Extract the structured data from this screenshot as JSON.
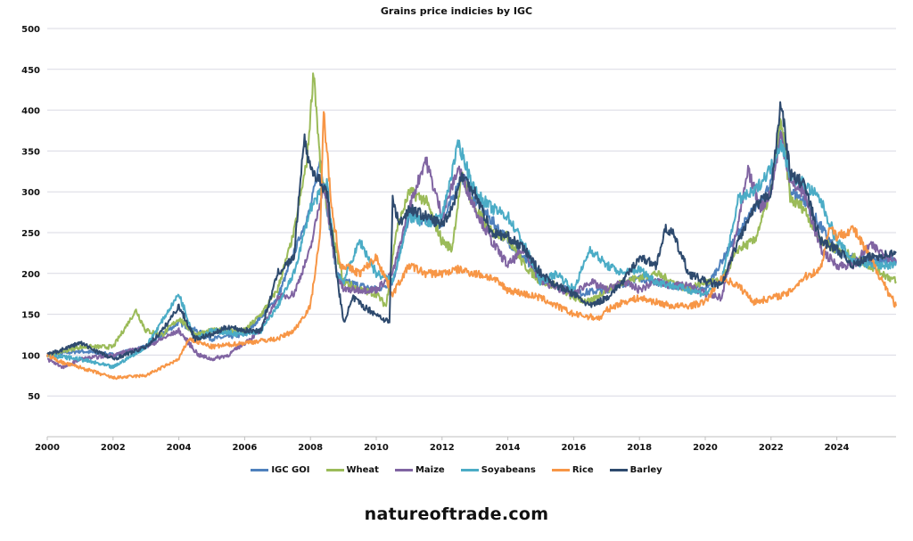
{
  "chart_data": {
    "type": "line",
    "title": "Grains price indicies by IGC",
    "xlabel": "",
    "ylabel": "",
    "xlim": [
      2000,
      2025.8
    ],
    "ylim": [
      0,
      500
    ],
    "xticks": [
      "2000",
      "2002",
      "2004",
      "2006",
      "2008",
      "2010",
      "2012",
      "2014",
      "2016",
      "2018",
      "2020",
      "2022",
      "2024"
    ],
    "yticks": [
      "50",
      "100",
      "150",
      "200",
      "250",
      "300",
      "350",
      "400",
      "450",
      "500"
    ],
    "grid": "horizontal",
    "legend_position": "bottom",
    "series": [
      {
        "name": "IGC GOI",
        "color": "#4f81bd",
        "points": [
          [
            2000,
            100
          ],
          [
            2001,
            105
          ],
          [
            2002,
            100
          ],
          [
            2003,
            110
          ],
          [
            2004,
            140
          ],
          [
            2005,
            120
          ],
          [
            2006,
            125
          ],
          [
            2007,
            170
          ],
          [
            2008,
            280
          ],
          [
            2008.3,
            340
          ],
          [
            2008.8,
            200
          ],
          [
            2009,
            190
          ],
          [
            2010,
            180
          ],
          [
            2010.5,
            190
          ],
          [
            2011,
            270
          ],
          [
            2012,
            260
          ],
          [
            2012.6,
            320
          ],
          [
            2013,
            290
          ],
          [
            2014,
            240
          ],
          [
            2015,
            195
          ],
          [
            2016,
            175
          ],
          [
            2017,
            180
          ],
          [
            2018,
            195
          ],
          [
            2019,
            185
          ],
          [
            2020,
            180
          ],
          [
            2021,
            250
          ],
          [
            2022,
            310
          ],
          [
            2022.3,
            380
          ],
          [
            2022.6,
            300
          ],
          [
            2023,
            290
          ],
          [
            2024,
            225
          ],
          [
            2025,
            215
          ],
          [
            2025.8,
            215
          ]
        ]
      },
      {
        "name": "Wheat",
        "color": "#9bbb59",
        "points": [
          [
            2000,
            100
          ],
          [
            2001,
            110
          ],
          [
            2002,
            110
          ],
          [
            2002.7,
            155
          ],
          [
            2003,
            130
          ],
          [
            2003.5,
            125
          ],
          [
            2004,
            145
          ],
          [
            2004.5,
            125
          ],
          [
            2005,
            130
          ],
          [
            2006,
            130
          ],
          [
            2006.5,
            150
          ],
          [
            2007,
            180
          ],
          [
            2007.5,
            250
          ],
          [
            2007.9,
            340
          ],
          [
            2008.1,
            450
          ],
          [
            2008.3,
            330
          ],
          [
            2008.6,
            260
          ],
          [
            2009,
            190
          ],
          [
            2009.5,
            180
          ],
          [
            2010,
            175
          ],
          [
            2010.3,
            160
          ],
          [
            2010.6,
            250
          ],
          [
            2011,
            300
          ],
          [
            2011.5,
            290
          ],
          [
            2012,
            240
          ],
          [
            2012.3,
            230
          ],
          [
            2012.6,
            320
          ],
          [
            2013,
            280
          ],
          [
            2013.5,
            250
          ],
          [
            2014,
            245
          ],
          [
            2014.5,
            210
          ],
          [
            2015,
            190
          ],
          [
            2015.5,
            185
          ],
          [
            2016,
            170
          ],
          [
            2016.5,
            165
          ],
          [
            2017,
            180
          ],
          [
            2017.5,
            190
          ],
          [
            2018,
            195
          ],
          [
            2018.5,
            200
          ],
          [
            2019,
            190
          ],
          [
            2019.5,
            180
          ],
          [
            2020,
            190
          ],
          [
            2020.5,
            190
          ],
          [
            2021,
            230
          ],
          [
            2021.5,
            240
          ],
          [
            2022,
            300
          ],
          [
            2022.3,
            390
          ],
          [
            2022.6,
            290
          ],
          [
            2023,
            280
          ],
          [
            2023.5,
            240
          ],
          [
            2024,
            230
          ],
          [
            2024.5,
            220
          ],
          [
            2025,
            210
          ],
          [
            2025.8,
            190
          ]
        ]
      },
      {
        "name": "Maize",
        "color": "#8064a2",
        "points": [
          [
            2000,
            95
          ],
          [
            2000.5,
            85
          ],
          [
            2001,
            95
          ],
          [
            2002,
            100
          ],
          [
            2003,
            110
          ],
          [
            2004,
            130
          ],
          [
            2004.6,
            100
          ],
          [
            2005,
            95
          ],
          [
            2005.5,
            100
          ],
          [
            2006,
            115
          ],
          [
            2006.5,
            130
          ],
          [
            2007,
            170
          ],
          [
            2007.5,
            175
          ],
          [
            2008,
            230
          ],
          [
            2008.4,
            310
          ],
          [
            2008.8,
            200
          ],
          [
            2009,
            180
          ],
          [
            2009.5,
            180
          ],
          [
            2010,
            180
          ],
          [
            2010.5,
            200
          ],
          [
            2011,
            280
          ],
          [
            2011.5,
            340
          ],
          [
            2012,
            270
          ],
          [
            2012.5,
            330
          ],
          [
            2013,
            280
          ],
          [
            2013.5,
            240
          ],
          [
            2014,
            210
          ],
          [
            2014.5,
            230
          ],
          [
            2015,
            190
          ],
          [
            2016,
            175
          ],
          [
            2016.5,
            190
          ],
          [
            2017,
            180
          ],
          [
            2017.5,
            190
          ],
          [
            2018,
            180
          ],
          [
            2018.5,
            190
          ],
          [
            2019,
            185
          ],
          [
            2019.5,
            185
          ],
          [
            2020,
            175
          ],
          [
            2020.5,
            170
          ],
          [
            2021,
            260
          ],
          [
            2021.3,
            325
          ],
          [
            2021.7,
            280
          ],
          [
            2022,
            300
          ],
          [
            2022.3,
            370
          ],
          [
            2022.6,
            310
          ],
          [
            2023,
            300
          ],
          [
            2023.5,
            230
          ],
          [
            2024,
            210
          ],
          [
            2024.5,
            210
          ],
          [
            2025,
            235
          ],
          [
            2025.8,
            215
          ]
        ]
      },
      {
        "name": "Soyabeans",
        "color": "#4bacc6",
        "points": [
          [
            2000,
            100
          ],
          [
            2001,
            95
          ],
          [
            2002,
            85
          ],
          [
            2003,
            110
          ],
          [
            2004,
            175
          ],
          [
            2004.5,
            120
          ],
          [
            2005,
            130
          ],
          [
            2006,
            125
          ],
          [
            2006.5,
            130
          ],
          [
            2007,
            160
          ],
          [
            2007.5,
            200
          ],
          [
            2008,
            280
          ],
          [
            2008.5,
            310
          ],
          [
            2008.8,
            200
          ],
          [
            2009,
            190
          ],
          [
            2009.5,
            240
          ],
          [
            2010,
            200
          ],
          [
            2010.5,
            190
          ],
          [
            2011,
            270
          ],
          [
            2011.5,
            260
          ],
          [
            2012,
            270
          ],
          [
            2012.5,
            360
          ],
          [
            2013,
            300
          ],
          [
            2013.5,
            280
          ],
          [
            2014,
            270
          ],
          [
            2014.5,
            235
          ],
          [
            2015,
            190
          ],
          [
            2015.5,
            200
          ],
          [
            2016,
            180
          ],
          [
            2016.5,
            230
          ],
          [
            2017,
            210
          ],
          [
            2017.5,
            200
          ],
          [
            2018,
            205
          ],
          [
            2018.5,
            190
          ],
          [
            2019,
            185
          ],
          [
            2019.5,
            180
          ],
          [
            2020,
            175
          ],
          [
            2020.5,
            190
          ],
          [
            2021,
            290
          ],
          [
            2021.5,
            300
          ],
          [
            2022,
            330
          ],
          [
            2022.3,
            360
          ],
          [
            2022.6,
            320
          ],
          [
            2023,
            310
          ],
          [
            2023.5,
            290
          ],
          [
            2024,
            240
          ],
          [
            2024.5,
            215
          ],
          [
            2025,
            210
          ],
          [
            2025.8,
            210
          ]
        ]
      },
      {
        "name": "Rice",
        "color": "#f79646",
        "points": [
          [
            2000,
            100
          ],
          [
            2000.5,
            90
          ],
          [
            2001,
            85
          ],
          [
            2002,
            72
          ],
          [
            2003,
            75
          ],
          [
            2004,
            95
          ],
          [
            2004.3,
            120
          ],
          [
            2005,
            110
          ],
          [
            2006,
            115
          ],
          [
            2007,
            120
          ],
          [
            2007.5,
            130
          ],
          [
            2008,
            160
          ],
          [
            2008.3,
            250
          ],
          [
            2008.4,
            400
          ],
          [
            2008.6,
            300
          ],
          [
            2008.9,
            210
          ],
          [
            2009,
            210
          ],
          [
            2009.5,
            200
          ],
          [
            2010,
            220
          ],
          [
            2010.5,
            175
          ],
          [
            2011,
            210
          ],
          [
            2011.5,
            200
          ],
          [
            2012,
            200
          ],
          [
            2012.5,
            205
          ],
          [
            2013,
            200
          ],
          [
            2013.5,
            195
          ],
          [
            2014,
            180
          ],
          [
            2014.5,
            175
          ],
          [
            2015,
            170
          ],
          [
            2015.5,
            160
          ],
          [
            2016,
            150
          ],
          [
            2016.8,
            145
          ],
          [
            2017,
            155
          ],
          [
            2017.5,
            165
          ],
          [
            2018,
            170
          ],
          [
            2018.5,
            165
          ],
          [
            2019,
            160
          ],
          [
            2019.5,
            160
          ],
          [
            2020,
            165
          ],
          [
            2020.5,
            195
          ],
          [
            2021,
            185
          ],
          [
            2021.5,
            165
          ],
          [
            2022,
            170
          ],
          [
            2022.5,
            175
          ],
          [
            2023,
            195
          ],
          [
            2023.5,
            205
          ],
          [
            2023.8,
            260
          ],
          [
            2024,
            245
          ],
          [
            2024.5,
            255
          ],
          [
            2025,
            220
          ],
          [
            2025.8,
            160
          ]
        ]
      },
      {
        "name": "Barley",
        "color": "#2e4a6e",
        "points": [
          [
            2000,
            100
          ],
          [
            2001,
            115
          ],
          [
            2002,
            95
          ],
          [
            2003,
            110
          ],
          [
            2003.5,
            130
          ],
          [
            2004,
            160
          ],
          [
            2004.5,
            120
          ],
          [
            2005,
            125
          ],
          [
            2005.5,
            135
          ],
          [
            2006,
            130
          ],
          [
            2006.5,
            130
          ],
          [
            2007,
            200
          ],
          [
            2007.5,
            220
          ],
          [
            2007.8,
            365
          ],
          [
            2008,
            330
          ],
          [
            2008.5,
            300
          ],
          [
            2008.8,
            200
          ],
          [
            2009,
            140
          ],
          [
            2009.3,
            170
          ],
          [
            2009.6,
            160
          ],
          [
            2010,
            150
          ],
          [
            2010.4,
            140
          ],
          [
            2010.5,
            290
          ],
          [
            2010.7,
            260
          ],
          [
            2011,
            280
          ],
          [
            2011.5,
            270
          ],
          [
            2012,
            260
          ],
          [
            2012.3,
            280
          ],
          [
            2012.6,
            320
          ],
          [
            2013,
            300
          ],
          [
            2013.5,
            250
          ],
          [
            2014,
            245
          ],
          [
            2014.5,
            230
          ],
          [
            2015,
            200
          ],
          [
            2015.5,
            185
          ],
          [
            2016,
            175
          ],
          [
            2016.5,
            160
          ],
          [
            2017,
            170
          ],
          [
            2017.5,
            190
          ],
          [
            2018,
            220
          ],
          [
            2018.5,
            210
          ],
          [
            2018.8,
            255
          ],
          [
            2019,
            250
          ],
          [
            2019.5,
            200
          ],
          [
            2020,
            190
          ],
          [
            2020.5,
            185
          ],
          [
            2021,
            240
          ],
          [
            2021.5,
            280
          ],
          [
            2022,
            300
          ],
          [
            2022.3,
            410
          ],
          [
            2022.6,
            320
          ],
          [
            2023,
            310
          ],
          [
            2023.5,
            240
          ],
          [
            2024,
            230
          ],
          [
            2024.5,
            210
          ],
          [
            2025,
            220
          ],
          [
            2025.8,
            225
          ]
        ]
      }
    ]
  },
  "footer": "natureoftrade.com"
}
